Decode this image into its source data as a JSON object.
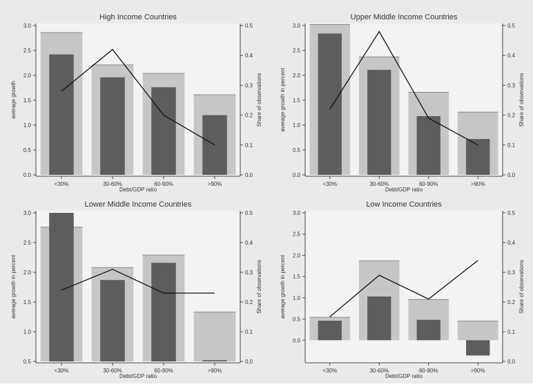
{
  "colors": {
    "background": "#eaeaea",
    "panel_fill": "#f3f3f3",
    "light_bar": "#c6c6c6",
    "dark_bar": "#5d5d5d",
    "line": "#111111",
    "axis": "#444444"
  },
  "chart_data": [
    {
      "type": "bar",
      "title": "High Income Countries",
      "xlabel": "Debt/GDP ratio",
      "ylabel": "average growth",
      "y2label": "Share of observations",
      "categories": [
        "<30%",
        "30-60%",
        "60-90%",
        ">90%"
      ],
      "ylim": [
        0,
        3
      ],
      "yticks": [
        "0.0",
        "0.5",
        "1.0",
        "1.5",
        "2.0",
        "2.5",
        "3.0"
      ],
      "y2lim": [
        0,
        0.5
      ],
      "y2ticks": [
        "0.0",
        "0.1",
        "0.2",
        "0.3",
        "0.4",
        "0.5"
      ],
      "series": [
        {
          "kind": "light_bar",
          "values": [
            2.86,
            2.21,
            2.04,
            1.61
          ]
        },
        {
          "kind": "dark_bar",
          "values": [
            2.42,
            1.96,
            1.76,
            1.2
          ]
        },
        {
          "kind": "line",
          "axis": "y2",
          "values": [
            0.28,
            0.42,
            0.2,
            0.1
          ]
        }
      ]
    },
    {
      "type": "bar",
      "title": "Upper Middle Income Countries",
      "xlabel": "Debt/GDP ratio",
      "ylabel": "average growth in percent",
      "y2label": "Share of observations",
      "categories": [
        "<30%",
        "30-60%",
        "60-90%",
        ">90%"
      ],
      "ylim": [
        0,
        3
      ],
      "yticks": [
        "0.0",
        "0.5",
        "1.0",
        "1.5",
        "2.0",
        "2.5",
        "3.0"
      ],
      "y2lim": [
        0,
        0.5
      ],
      "y2ticks": [
        "0.0",
        "0.1",
        "0.2",
        "0.3",
        "0.4",
        "0.5"
      ],
      "series": [
        {
          "kind": "light_bar",
          "values": [
            3.02,
            2.37,
            1.66,
            1.26
          ]
        },
        {
          "kind": "dark_bar",
          "values": [
            2.84,
            2.11,
            1.18,
            0.72
          ]
        },
        {
          "kind": "line",
          "axis": "y2",
          "values": [
            0.22,
            0.48,
            0.19,
            0.1
          ]
        }
      ]
    },
    {
      "type": "bar",
      "title": "Lower Middle Income Countries",
      "xlabel": "Debt/GDP ratio",
      "ylabel": "average growth in percent",
      "y2label": "Share of observations",
      "categories": [
        "<30%",
        "30-60%",
        "60-90%",
        ">90%"
      ],
      "ylim": [
        0.5,
        3
      ],
      "yticks": [
        "0.5",
        "1.0",
        "1.5",
        "2.0",
        "2.5",
        "3.0"
      ],
      "y2lim": [
        0,
        0.5
      ],
      "y2ticks": [
        "0.0",
        "0.1",
        "0.2",
        "0.3",
        "0.4",
        "0.5"
      ],
      "series": [
        {
          "kind": "light_bar",
          "values": [
            2.76,
            2.08,
            2.29,
            1.33
          ]
        },
        {
          "kind": "dark_bar",
          "values": [
            3.0,
            1.87,
            2.16,
            0.52
          ]
        },
        {
          "kind": "line",
          "axis": "y2",
          "values": [
            0.24,
            0.31,
            0.23,
            0.23
          ]
        }
      ]
    },
    {
      "type": "bar",
      "title": "Low Income Countries",
      "xlabel": "Debt/GDP ratio",
      "ylabel": "average growth in percent",
      "y2label": "Share of observations",
      "categories": [
        "<30%",
        "30-60%",
        "60-90%",
        ">90%"
      ],
      "ylim": [
        -0.5,
        3
      ],
      "yticks": [
        "0.0",
        "0.5",
        "1.0",
        "1.5",
        "2.0",
        "2.5",
        "3.0"
      ],
      "y2lim": [
        0,
        0.5
      ],
      "y2ticks": [
        "0.0",
        "0.1",
        "0.2",
        "0.3",
        "0.4",
        "0.5"
      ],
      "series": [
        {
          "kind": "light_bar",
          "values": [
            0.54,
            1.87,
            0.96,
            0.45
          ]
        },
        {
          "kind": "dark_bar",
          "values": [
            0.46,
            1.03,
            0.48,
            -0.36
          ]
        },
        {
          "kind": "line",
          "axis": "y2",
          "values": [
            0.15,
            0.29,
            0.21,
            0.34
          ]
        }
      ]
    }
  ]
}
